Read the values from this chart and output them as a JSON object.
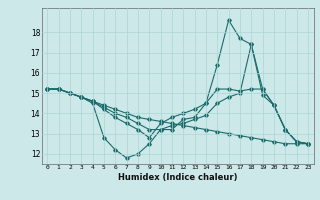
{
  "xlabel": "Humidex (Indice chaleur)",
  "ylabel": "",
  "background_color": "#cce8e8",
  "grid_color": "#aad4d4",
  "line_color": "#1a6b6b",
  "xlim": [
    -0.5,
    23.5
  ],
  "ylim": [
    11.5,
    19.2
  ],
  "x": [
    0,
    1,
    2,
    3,
    4,
    5,
    6,
    7,
    8,
    9,
    10,
    11,
    12,
    13,
    14,
    15,
    16,
    17,
    18,
    19,
    20,
    21,
    22,
    23
  ],
  "series": [
    [
      15.2,
      15.2,
      15.0,
      14.8,
      14.5,
      12.8,
      12.2,
      11.8,
      12.0,
      12.5,
      13.2,
      13.2,
      13.7,
      13.8,
      14.5,
      16.4,
      18.6,
      17.7,
      17.4,
      15.2,
      14.4,
      13.2,
      12.6,
      12.5
    ],
    [
      15.2,
      15.2,
      15.0,
      14.8,
      14.6,
      14.2,
      13.8,
      13.5,
      13.2,
      12.8,
      13.5,
      13.8,
      14.0,
      14.2,
      14.5,
      15.2,
      15.2,
      15.1,
      15.2,
      15.2,
      14.4,
      13.2,
      12.6,
      12.5
    ],
    [
      15.2,
      15.2,
      15.0,
      14.8,
      14.6,
      14.3,
      14.0,
      13.8,
      13.5,
      13.2,
      13.2,
      13.4,
      13.5,
      13.7,
      13.9,
      14.5,
      14.8,
      15.0,
      17.4,
      14.9,
      14.4,
      13.2,
      12.6,
      12.5
    ],
    [
      15.2,
      15.2,
      15.0,
      14.8,
      14.6,
      14.4,
      14.2,
      14.0,
      13.8,
      13.7,
      13.6,
      13.5,
      13.4,
      13.3,
      13.2,
      13.1,
      13.0,
      12.9,
      12.8,
      12.7,
      12.6,
      12.5,
      12.5,
      12.5
    ]
  ],
  "yticks": [
    12,
    13,
    14,
    15,
    16,
    17,
    18
  ],
  "xtick_labels": [
    "0",
    "1",
    "2",
    "3",
    "4",
    "5",
    "6",
    "7",
    "8",
    "9",
    "10",
    "11",
    "12",
    "13",
    "14",
    "15",
    "16",
    "17",
    "18",
    "19",
    "20",
    "21",
    "22",
    "23"
  ],
  "marker": "D",
  "markersize": 1.8,
  "linewidth": 0.8
}
